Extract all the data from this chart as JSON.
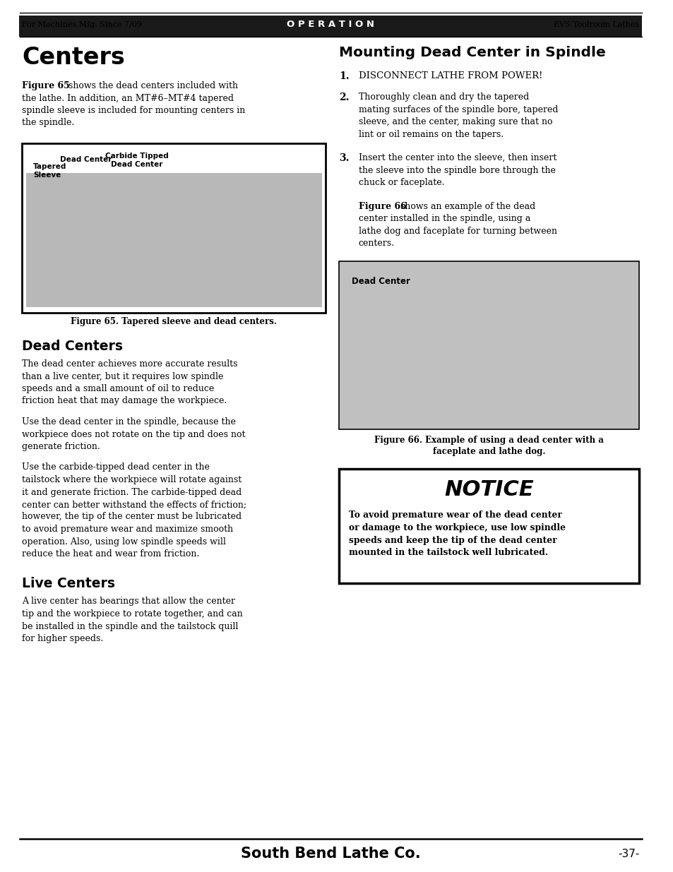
{
  "page_width": 9.54,
  "page_height": 12.35,
  "bg_color": "#ffffff",
  "header_bg": "#1a1a1a",
  "header_left": "For Machines Mfg. Since 7/09",
  "header_center": "O P E R A T I O N",
  "header_right": "EVS Toolroom Lathes",
  "footer_center": "South Bend Lathe Co.",
  "footer_right": "-37-",
  "section1_title": "Centers",
  "section1_intro_bold": "Figure 65",
  "section1_intro_rest": " shows the dead centers included with the lathe. In addition, an MT#6–MT#4 tapered spindle sleeve is included for mounting centers in the spindle.",
  "fig65_caption": "Figure 65. Tapered sleeve and dead centers.",
  "label_tapered_sleeve": "Tapered\nSleeve",
  "label_dead_center": "Dead Center",
  "label_carbide_tipped": "Carbide Tipped\nDead Center",
  "section2_title": "Dead Centers",
  "section2_para1": "The dead center achieves more accurate results than a live center, but it requires low spindle speeds and a small amount of oil to reduce friction heat that may damage the workpiece.",
  "section2_para2": "Use the dead center in the spindle, because the workpiece does not rotate on the tip and does not generate friction.",
  "section2_para3": "Use the carbide-tipped dead center in the tailstock where the workpiece will rotate against it and generate friction. The carbide-tipped dead center can better withstand the effects of friction; however, the tip of the center must be lubricated to avoid premature wear and maximize smooth operation. Also, using low spindle speeds will reduce the heat and wear from friction.",
  "section3_title": "Live Centers",
  "section3_para1": "A live center has bearings that allow the center tip and the workpiece to rotate together, and can be installed in the spindle and the tailstock quill for higher speeds.",
  "right_section_title": "Mounting Dead Center in Spindle",
  "right_step1_bold": "1.",
  "right_step1_text": "DISCONNECT LATHE FROM POWER!",
  "right_step2_bold": "2.",
  "right_step2_text": "Thoroughly clean and dry the tapered mating surfaces of the spindle bore, tapered sleeve, and the center, making sure that no lint or oil remains on the tapers.",
  "right_step3_bold": "3.",
  "right_step3_text": "Insert the center into the sleeve, then insert the sleeve into the spindle bore through the chuck or faceplate.",
  "right_fig66_intro_bold": "Figure 66",
  "right_fig66_intro_rest": " shows an example of the dead center installed in the spindle, using a lathe dog and faceplate for turning between centers.",
  "fig66_label": "Dead Center",
  "fig66_caption": "Figure 66. Example of using a dead center with a\nfaceplate and lathe dog.",
  "notice_title": "NOTICE",
  "notice_text": "To avoid premature wear of the dead center or damage to the workpiece, use low spindle speeds and keep the tip of the dead center mounted in the tailstock well lubricated.",
  "notice_text_lines": [
    "To avoid premature wear of the dead center",
    "or damage to the workpiece, use low spindle",
    "speeds and keep the tip of the dead center",
    "mounted in the tailstock well lubricated."
  ],
  "intro_lines": [
    " shows the dead centers included with",
    "the lathe. In addition, an MT#6–MT#4 tapered",
    "spindle sleeve is included for mounting centers in",
    "the spindle."
  ],
  "step2_lines": [
    "Thoroughly clean and dry the tapered",
    "mating surfaces of the spindle bore, tapered",
    "sleeve, and the center, making sure that no",
    "lint or oil remains on the tapers."
  ],
  "step3_lines": [
    "Insert the center into the sleeve, then insert",
    "the sleeve into the spindle bore through the",
    "chuck or faceplate."
  ],
  "fig66_intro_rest_lines": [
    " shows an example of the dead",
    "center installed in the spindle, using a",
    "lathe dog and faceplate for turning between",
    "centers."
  ],
  "sec2_para1_lines": [
    "The dead center achieves more accurate results",
    "than a live center, but it requires low spindle",
    "speeds and a small amount of oil to reduce",
    "friction heat that may damage the workpiece."
  ],
  "sec2_para2_lines": [
    "Use the dead center in the spindle, because the",
    "workpiece does not rotate on the tip and does not",
    "generate friction."
  ],
  "sec2_para3_lines": [
    "Use the carbide-tipped dead center in the",
    "tailstock where the workpiece will rotate against",
    "it and generate friction. The carbide-tipped dead",
    "center can better withstand the effects of friction;",
    "however, the tip of the center must be lubricated",
    "to avoid premature wear and maximize smooth",
    "operation. Also, using low spindle speeds will",
    "reduce the heat and wear from friction."
  ],
  "sec3_para1_lines": [
    "A live center has bearings that allow the center",
    "tip and the workpiece to rotate together, and can",
    "be installed in the spindle and the tailstock quill",
    "for higher speeds."
  ]
}
